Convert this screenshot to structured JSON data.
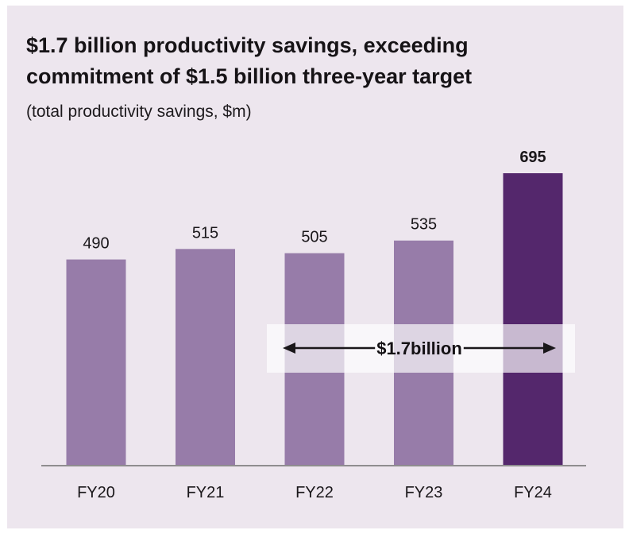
{
  "chart_data": {
    "type": "bar",
    "title": "$1.7 billion productivity savings, exceeding commitment of $1.5 billion three-year target",
    "title_lines": [
      "$1.7 billion productivity savings, exceeding",
      "commitment of $1.5 billion three-year target"
    ],
    "subtitle": "(total productivity savings, $m)",
    "categories": [
      "FY20",
      "FY21",
      "FY22",
      "FY23",
      "FY24"
    ],
    "values": [
      490,
      515,
      505,
      535,
      695
    ],
    "highlight": "FY24",
    "ylim": [
      0,
      695
    ],
    "grid": false,
    "annotation": {
      "text": "$1.7billion",
      "from": "FY22",
      "to": "FY24"
    },
    "colors": {
      "bar": "#977ca9",
      "highlight_bar": "#54276c",
      "background": "#ede6ee",
      "axis": "#8f8d8f",
      "annotation_box": "#ffffff"
    }
  }
}
